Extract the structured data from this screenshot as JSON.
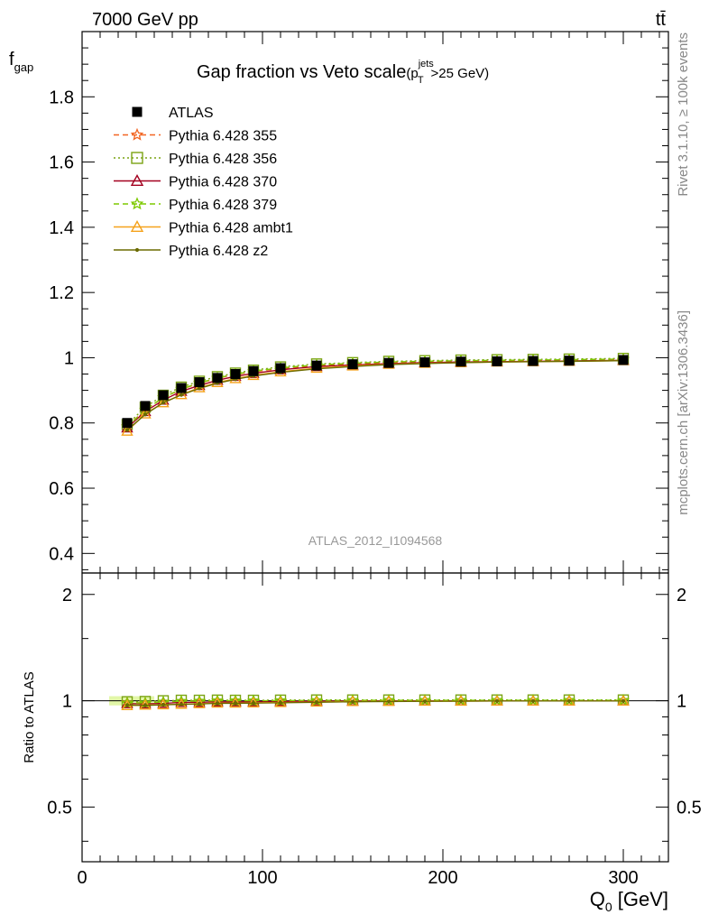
{
  "header": {
    "left": "7000 GeV pp",
    "right": "tt̄"
  },
  "side_labels": {
    "rivet": "Rivet 3.1.10, ≥ 100k events",
    "mcplots": "mcplots.cern.ch [arXiv:1306.3436]"
  },
  "watermark": "ATLAS_2012_I1094568",
  "chart_data": {
    "type": "line",
    "title": "Gap fraction vs Veto scale",
    "title_suffix": {
      "open": "(p",
      "sup": "jets",
      "sub": "T",
      "close": ">25 GeV)"
    },
    "ylabel": {
      "main": "f",
      "sub": "gap"
    },
    "xlabel": {
      "main": "Q",
      "sub": "0",
      "unit": " [GeV]"
    },
    "ratio_ylabel": "Ratio to ATLAS",
    "xlim": [
      0,
      325
    ],
    "ylim": [
      0.34,
      2.0
    ],
    "ratio_ylim": [
      0.35,
      2.3
    ],
    "x_ticks": [
      0,
      100,
      200,
      300
    ],
    "y_ticks": [
      0.4,
      0.6,
      0.8,
      1,
      1.2,
      1.4,
      1.6,
      1.8
    ],
    "ratio_ticks": [
      0.5,
      1,
      2
    ],
    "x": [
      25,
      35,
      45,
      55,
      65,
      75,
      85,
      95,
      110,
      130,
      150,
      170,
      190,
      210,
      230,
      250,
      270,
      300
    ],
    "data": {
      "name": "ATLAS",
      "values": [
        0.8,
        0.852,
        0.885,
        0.907,
        0.925,
        0.938,
        0.95,
        0.959,
        0.968,
        0.976,
        0.98,
        0.984,
        0.986,
        0.988,
        0.989,
        0.99,
        0.991,
        0.993
      ]
    },
    "series": [
      {
        "name": "Pythia 6.428 355",
        "color": "#f26522",
        "dash": "6,4",
        "marker": "star",
        "values": [
          0.79,
          0.84,
          0.878,
          0.903,
          0.922,
          0.937,
          0.949,
          0.957,
          0.967,
          0.976,
          0.981,
          0.985,
          0.987,
          0.989,
          0.99,
          0.991,
          0.992,
          0.994
        ]
      },
      {
        "name": "Pythia 6.428 356",
        "color": "#7aa313",
        "dash": "2,3",
        "marker": "square",
        "values": [
          0.795,
          0.848,
          0.885,
          0.91,
          0.928,
          0.942,
          0.953,
          0.962,
          0.972,
          0.981,
          0.985,
          0.989,
          0.991,
          0.993,
          0.994,
          0.995,
          0.996,
          0.998
        ]
      },
      {
        "name": "Pythia 6.428 370",
        "color": "#a3001f",
        "dash": "",
        "marker": "triangle",
        "values": [
          0.785,
          0.835,
          0.87,
          0.897,
          0.915,
          0.931,
          0.943,
          0.952,
          0.963,
          0.973,
          0.978,
          0.982,
          0.985,
          0.987,
          0.988,
          0.989,
          0.99,
          0.992
        ]
      },
      {
        "name": "Pythia 6.428 379",
        "color": "#7dc900",
        "dash": "6,4",
        "marker": "star",
        "values": [
          0.788,
          0.84,
          0.878,
          0.904,
          0.923,
          0.938,
          0.95,
          0.959,
          0.969,
          0.978,
          0.983,
          0.987,
          0.989,
          0.991,
          0.992,
          0.993,
          0.994,
          0.996
        ]
      },
      {
        "name": "Pythia 6.428 ambt1",
        "color": "#f5a21b",
        "dash": "",
        "marker": "triangle",
        "values": [
          0.775,
          0.828,
          0.862,
          0.887,
          0.908,
          0.924,
          0.936,
          0.946,
          0.957,
          0.968,
          0.975,
          0.98,
          0.983,
          0.985,
          0.987,
          0.988,
          0.989,
          0.991
        ]
      },
      {
        "name": "Pythia 6.428 z2",
        "color": "#6b6b00",
        "dash": "",
        "marker": "dot",
        "values": [
          0.778,
          0.826,
          0.862,
          0.886,
          0.906,
          0.922,
          0.934,
          0.944,
          0.955,
          0.966,
          0.973,
          0.979,
          0.982,
          0.985,
          0.987,
          0.988,
          0.989,
          0.991
        ]
      }
    ]
  }
}
